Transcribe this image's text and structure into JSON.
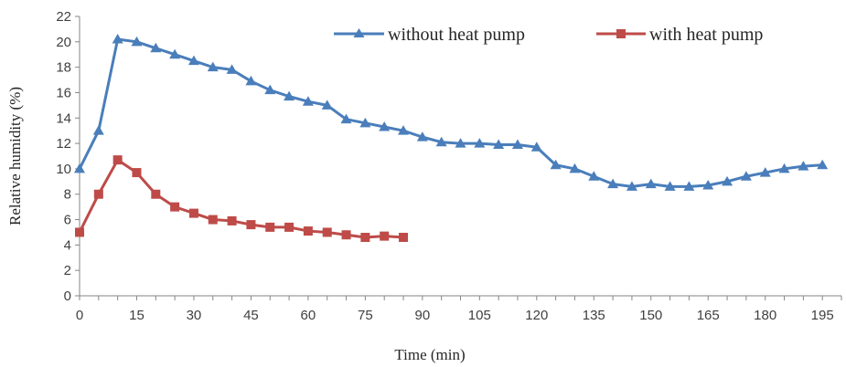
{
  "chart_data": {
    "type": "line",
    "xlabel": "Time (min)",
    "ylabel": "Relative humidity (%)",
    "xlim": [
      0,
      200
    ],
    "ylim": [
      0,
      22
    ],
    "xticks": [
      "0",
      "15",
      "30",
      "45",
      "60",
      "75",
      "90",
      "105",
      "120",
      "135",
      "150",
      "165",
      "180",
      "195"
    ],
    "yticks": [
      "0",
      "2",
      "4",
      "6",
      "8",
      "10",
      "12",
      "14",
      "16",
      "18",
      "20",
      "22"
    ],
    "grid": false,
    "legend": "top-right",
    "series": [
      {
        "name": "without heat pump",
        "color": "#4a7ebb",
        "marker": "triangle",
        "x": [
          0,
          5,
          10,
          15,
          20,
          25,
          30,
          35,
          40,
          45,
          50,
          55,
          60,
          65,
          70,
          75,
          80,
          85,
          90,
          95,
          100,
          105,
          110,
          115,
          120,
          125,
          130,
          135,
          140,
          145,
          150,
          155,
          160,
          165,
          170,
          175,
          180,
          185,
          190,
          195
        ],
        "y": [
          10,
          13,
          20.2,
          20,
          19.5,
          19,
          18.5,
          18,
          17.8,
          16.9,
          16.2,
          15.7,
          15.3,
          15,
          13.9,
          13.6,
          13.3,
          13,
          12.5,
          12.1,
          12,
          12,
          11.9,
          11.9,
          11.7,
          10.3,
          10,
          9.4,
          8.8,
          8.6,
          8.8,
          8.6,
          8.6,
          8.7,
          9,
          9.4,
          9.7,
          10,
          10.2,
          10.3
        ]
      },
      {
        "name": "with heat pump",
        "color": "#be4b48",
        "marker": "square",
        "x": [
          0,
          5,
          10,
          15,
          20,
          25,
          30,
          35,
          40,
          45,
          50,
          55,
          60,
          65,
          70,
          75,
          80,
          85
        ],
        "y": [
          5,
          8,
          10.7,
          9.7,
          8,
          7,
          6.5,
          6,
          5.9,
          5.6,
          5.4,
          5.4,
          5.1,
          5,
          4.8,
          4.6,
          4.7,
          4.6
        ]
      }
    ]
  },
  "axis_color": "#868686"
}
